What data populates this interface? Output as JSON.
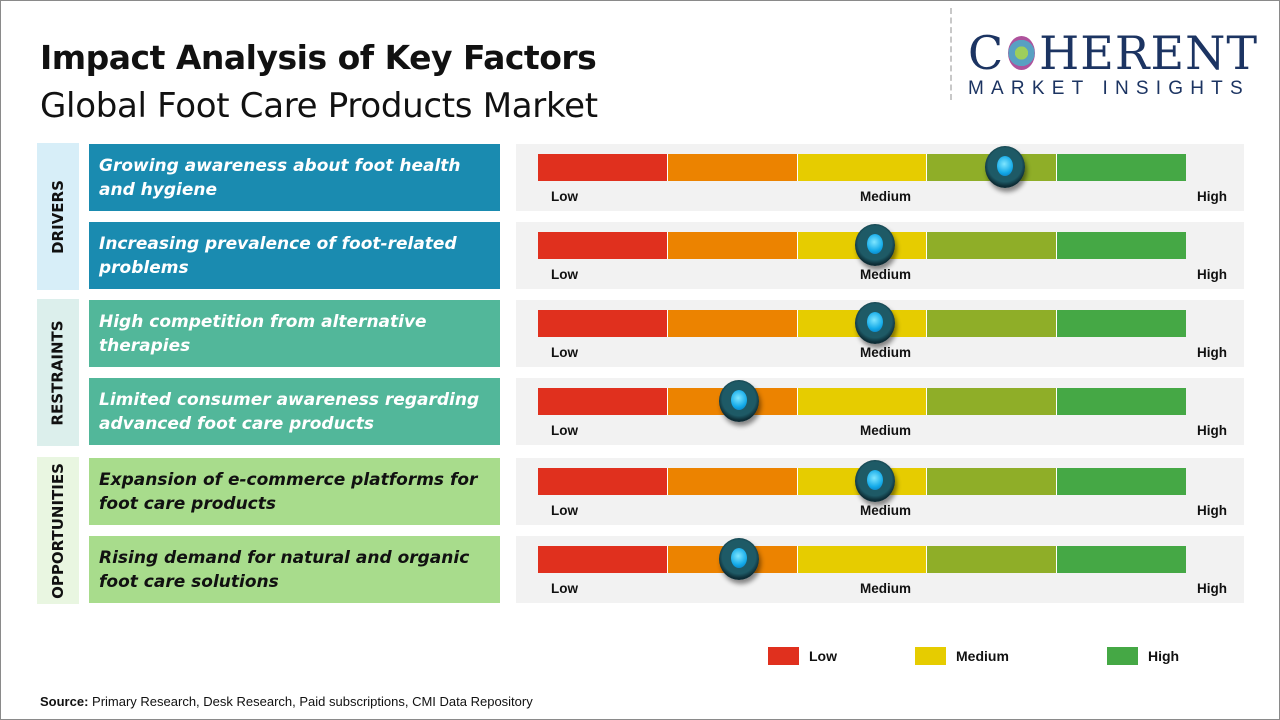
{
  "header": {
    "title": "Impact Analysis of Key Factors",
    "subtitle": "Global Foot Care Products Market"
  },
  "logo": {
    "main_left": "C",
    "main_right": "HERENT",
    "sub": "MARKET INSIGHTS"
  },
  "scale_labels": {
    "low": "Low",
    "medium": "Medium",
    "high": "High"
  },
  "colors": {
    "segments": [
      "#e0301e",
      "#ec8300",
      "#e6cc00",
      "#8fae28",
      "#45a845"
    ],
    "drivers": "#1a8bb0",
    "restraints": "#52b79a",
    "opportunities": "#a8dc8c"
  },
  "chart_data": {
    "type": "gauge",
    "scale": [
      "Low",
      "Medium",
      "High"
    ],
    "range": [
      0,
      1
    ],
    "categories": [
      {
        "name": "DRIVERS",
        "label_bg": "#d7eef8",
        "box_color": "#1a8bb0",
        "text_color": "#ffffff",
        "factors": [
          {
            "text": "Growing awareness about foot health and hygiene",
            "impact": 0.72
          },
          {
            "text": "Increasing prevalence of foot-related problems",
            "impact": 0.52
          }
        ]
      },
      {
        "name": "RESTRAINTS",
        "label_bg": "#dcefec",
        "box_color": "#52b79a",
        "text_color": "#ffffff",
        "factors": [
          {
            "text": "High competition from alternative therapies",
            "impact": 0.52
          },
          {
            "text": "Limited consumer awareness regarding advanced foot care products",
            "impact": 0.31
          }
        ]
      },
      {
        "name": "OPPORTUNITIES",
        "label_bg": "#e9f6e1",
        "box_color": "#a8dc8c",
        "text_color": "#111111",
        "factors": [
          {
            "text": "Expansion of e-commerce platforms for foot care products",
            "impact": 0.52
          },
          {
            "text": "Rising demand for natural and organic foot care solutions",
            "impact": 0.31
          }
        ]
      }
    ],
    "legend": [
      {
        "label": "Low",
        "color": "#e0301e"
      },
      {
        "label": "Medium",
        "color": "#e6cc00"
      },
      {
        "label": "High",
        "color": "#45a845"
      }
    ]
  },
  "footer": {
    "source_label": "Source:",
    "source_text": " Primary Research, Desk Research, Paid subscriptions, CMI Data Repository"
  }
}
